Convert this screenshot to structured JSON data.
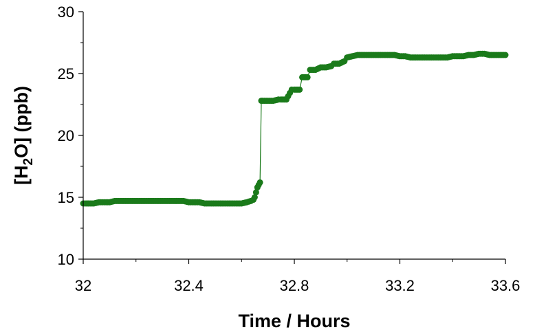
{
  "chart_data": {
    "type": "scatter",
    "title": "",
    "xlabel": "Time / Hours",
    "ylabel": {
      "prefix": "[H",
      "subscript": "2",
      "suffix": "O] (ppb)"
    },
    "xlim": [
      32,
      33.6
    ],
    "ylim": [
      10,
      30
    ],
    "xticks": [
      "32",
      "32.4",
      "32.8",
      "33.2",
      "33.6"
    ],
    "yticks": [
      "10",
      "15",
      "20",
      "25",
      "30"
    ],
    "grid": false,
    "legend": "none",
    "series_color": "#1a7a1a",
    "series": [
      {
        "x": [
          32.0,
          32.02,
          32.04,
          32.06,
          32.08,
          32.1,
          32.12,
          32.14,
          32.16,
          32.18,
          32.2,
          32.22,
          32.24,
          32.26,
          32.28,
          32.3,
          32.32,
          32.34,
          32.36,
          32.38,
          32.4,
          32.42,
          32.44,
          32.46,
          32.48,
          32.5,
          32.52,
          32.54,
          32.56,
          32.58,
          32.6,
          32.62,
          32.635,
          32.645,
          32.65,
          32.655,
          32.66,
          32.665,
          32.67,
          32.675,
          32.68,
          32.7,
          32.72,
          32.74,
          32.75,
          32.77,
          32.79,
          32.8,
          32.82,
          32.83,
          32.85,
          32.86,
          32.88,
          32.9,
          32.92,
          32.94,
          32.95,
          32.97,
          32.99,
          33.0,
          33.02,
          33.04,
          33.06,
          33.08,
          33.1,
          33.12,
          33.14,
          33.16,
          33.18,
          33.2,
          33.22,
          33.24,
          33.26,
          33.28,
          33.3,
          33.32,
          33.34,
          33.36,
          33.38,
          33.4,
          33.42,
          33.44,
          33.46,
          33.48,
          33.5,
          33.52,
          33.54,
          33.56,
          33.58,
          33.6
        ],
        "y": [
          14.5,
          14.5,
          14.5,
          14.6,
          14.6,
          14.6,
          14.7,
          14.7,
          14.7,
          14.7,
          14.7,
          14.7,
          14.7,
          14.7,
          14.7,
          14.7,
          14.7,
          14.7,
          14.7,
          14.7,
          14.6,
          14.6,
          14.6,
          14.5,
          14.5,
          14.5,
          14.5,
          14.5,
          14.5,
          14.5,
          14.5,
          14.6,
          14.7,
          14.8,
          15.0,
          15.4,
          15.8,
          16.0,
          16.2,
          22.8,
          22.8,
          22.8,
          22.8,
          22.9,
          22.9,
          22.9,
          23.7,
          23.7,
          23.7,
          24.7,
          24.7,
          25.3,
          25.3,
          25.5,
          25.5,
          25.6,
          25.8,
          25.8,
          26.0,
          26.3,
          26.4,
          26.5,
          26.5,
          26.5,
          26.5,
          26.5,
          26.5,
          26.5,
          26.5,
          26.4,
          26.4,
          26.3,
          26.3,
          26.3,
          26.3,
          26.3,
          26.3,
          26.3,
          26.3,
          26.4,
          26.4,
          26.4,
          26.5,
          26.5,
          26.6,
          26.6,
          26.5,
          26.5,
          26.5,
          26.5
        ]
      }
    ]
  }
}
